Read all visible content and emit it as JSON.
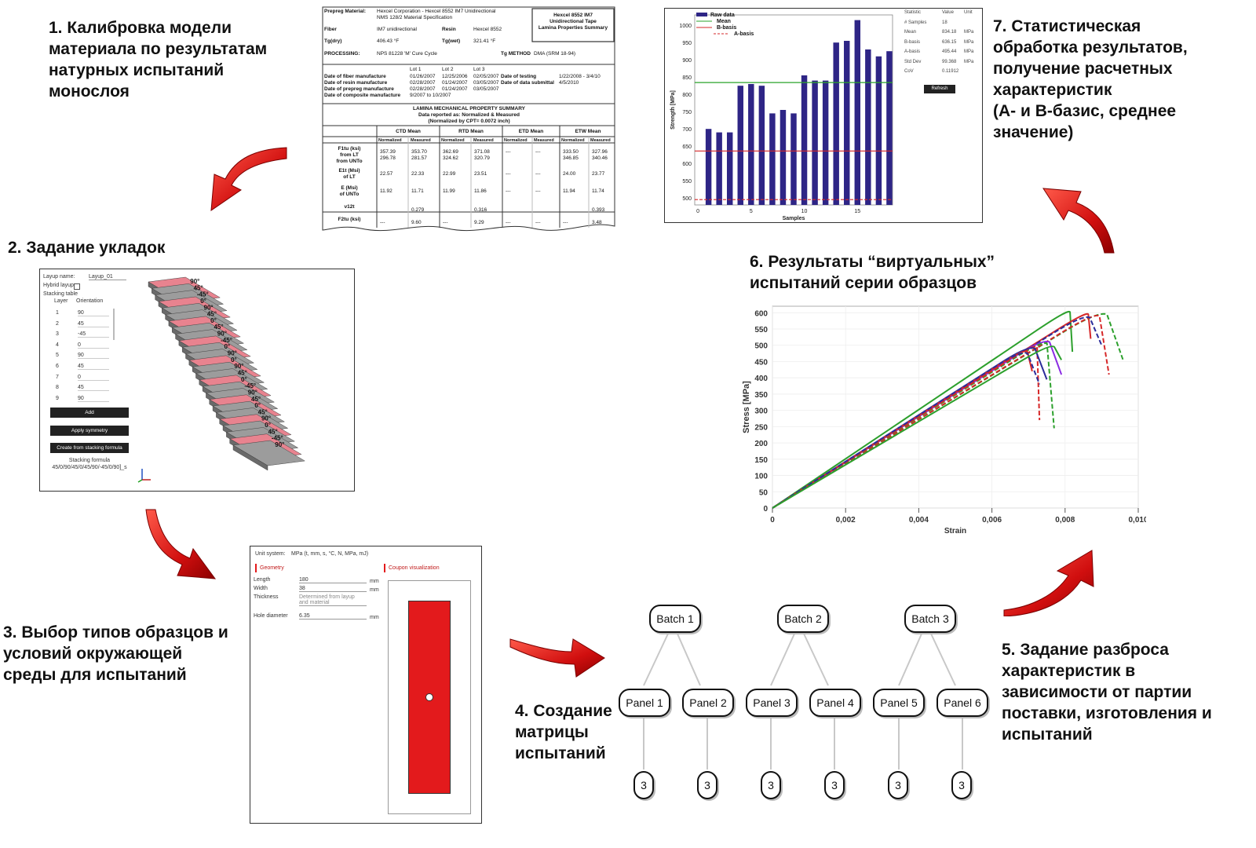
{
  "steps": {
    "s1": "1. Калибровка модели\nматериала по результатам\nнатурных испытаний\nмонослоя",
    "s2": "2. Задание укладок",
    "s3": "3. Выбор типов образцов и\nусловий окружающей\nсреды для испытаний",
    "s4": "4. Создание\nматрицы\nиспытаний",
    "s5": "5. Задание разброса\nхарактеристик в\nзависимости от партии\nпоставки, изготовления и\nиспытаний",
    "s6": "6. Результаты “виртуальных”\nиспытаний серии образцов",
    "s7": "7. Статистическая\nобработка результатов,\nполучение расчетных\nхарактеристик\n(A- и B-базис, среднее\nзначение)"
  },
  "material_doc": {
    "prepreg_label": "Prepreg Material:",
    "prepreg_value": "Hexcel Corporation - Hexcel 8552 IM7 Unidirectional",
    "spec": "NMS 128/2 Material Specification",
    "box_title": "Hexcel 8552 IM7\nUnidirectional Tape\nLamina Properties Summary",
    "fiber_label": "Fiber",
    "fiber_value": "IM7 unidirectional",
    "resin_label": "Resin",
    "resin_value": "Hexcel 8552",
    "tgdry_label": "Tg(dry)",
    "tgdry_value": "406.43 °F",
    "tgwet_label": "Tg(wet)",
    "tgwet_value": "321.41 °F",
    "processing_label": "PROCESSING:",
    "processing_value": "NPS 81228 'M' Cure Cycle",
    "tgmethod_label": "Tg METHOD",
    "tgmethod_value": "DMA (SRM 18-94)",
    "lots": [
      "Lot 1",
      "Lot 2",
      "Lot 3"
    ],
    "dates": [
      {
        "label": "Date of fiber manufacture",
        "v": [
          "01/26/2007",
          "12/25/2006",
          "02/05/2007"
        ]
      },
      {
        "label": "Date of resin manufacture",
        "v": [
          "02/28/2007",
          "01/24/2007",
          "03/05/2007"
        ]
      },
      {
        "label": "Date of prepreg manufacture",
        "v": [
          "02/28/2007",
          "01/24/2007",
          "03/05/2007"
        ]
      },
      {
        "label": "Date of composite manufacture",
        "v": [
          "9/2007 to 10/2007",
          "",
          ""
        ]
      }
    ],
    "testing_label": "Date of testing",
    "testing_value": "1/22/2008 - 3/4/10",
    "submittal_label": "Date of data submittal",
    "submittal_value": "4/5/2010",
    "summary_title": "LAMINA MECHANICAL PROPERTY SUMMARY",
    "summary_sub1": "Data reported as: Normalized & Measured",
    "summary_sub2": "(Normalized by CPT= 0.0072 inch)",
    "env_headers": [
      "CTD Mean",
      "RTD Mean",
      "ETD Mean",
      "ETW Mean"
    ],
    "sub_headers": [
      "Normalized",
      "Measured"
    ],
    "rows": [
      {
        "label": "F1tu (ksi)\nfrom LT\nfrom UNTo",
        "v": [
          "357.39\n296.78",
          "353.70\n281.57",
          "362.69\n324.62",
          "371.08\n320.79",
          "---",
          "---",
          "333.50\n346.85",
          "327.96\n340.46"
        ]
      },
      {
        "label": "E1t (Msi)\nof LT",
        "v": [
          "22.57",
          "22.33",
          "22.99",
          "23.51",
          "---",
          "---",
          "24.00",
          "23.77"
        ]
      },
      {
        "label": "E (Msi)\nof UNTo",
        "v": [
          "11.92",
          "11.71",
          "11.99",
          "11.86",
          "---",
          "---",
          "11.94",
          "11.74"
        ]
      },
      {
        "label": "ν12t",
        "v": [
          "",
          "0.279",
          "",
          "0.316",
          "",
          "",
          "",
          "0.393"
        ]
      },
      {
        "label": "F2tu (ksi)",
        "v": [
          "---",
          "9.60",
          "---",
          "9.29",
          "---",
          "---",
          "---",
          "3.48"
        ]
      }
    ]
  },
  "layup": {
    "name_label": "Layup name:",
    "name_value": "Layup_01",
    "hybrid_label": "Hybrid layup",
    "stacking_label": "Stacking table",
    "col_layer": "Layer",
    "col_orient": "Orientation",
    "layers": [
      [
        "1",
        "90"
      ],
      [
        "2",
        "45"
      ],
      [
        "3",
        "-45"
      ],
      [
        "4",
        "0"
      ],
      [
        "5",
        "90"
      ],
      [
        "6",
        "45"
      ],
      [
        "7",
        "0"
      ],
      [
        "8",
        "45"
      ],
      [
        "9",
        "90"
      ]
    ],
    "btn_add": "Add",
    "btn_symmetry": "Apply symmetry",
    "btn_formula": "Create from stacking formula",
    "formula_label": "Stacking formula",
    "formula_value": "45/0/90/45/0/45/90/-45/0/90]_s",
    "angle_labels": [
      "90°",
      "45°",
      "-45°",
      "0°",
      "90°",
      "45°",
      "0°",
      "45°",
      "90°",
      "-45°",
      "0°",
      "90°",
      "0°",
      "90°",
      "45°",
      "0°",
      "-45°",
      "90°",
      "45°",
      "0°",
      "45°",
      "90°",
      "0°",
      "45°",
      "-45°",
      "90°"
    ]
  },
  "coupon": {
    "unit_label": "Unit system:",
    "unit_value": "MPa (t, mm, s, °C, N, MPa, mJ)",
    "geometry_title": "Geometry",
    "viz_title": "Coupon visualization",
    "fields": [
      {
        "label": "Length",
        "value": "180",
        "unit": "mm"
      },
      {
        "label": "Width",
        "value": "38",
        "unit": "mm"
      },
      {
        "label": "Thickness",
        "value": "Determined from layup\nand material",
        "unit": ""
      },
      {
        "label": "Hole diameter",
        "value": "6.35",
        "unit": "mm"
      }
    ],
    "accent": "#e31a1c"
  },
  "matrix": {
    "batches": [
      "Batch 1",
      "Batch 2",
      "Batch 3"
    ],
    "panels": [
      "Panel 1",
      "Panel 2",
      "Panel 3",
      "Panel 4",
      "Panel 5",
      "Panel 6"
    ],
    "leaves": [
      "3",
      "3",
      "3",
      "3",
      "3",
      "3"
    ]
  },
  "chart_data": [
    {
      "type": "bar",
      "legend": [
        "Raw data",
        "Mean",
        "B-basis",
        "A-basis"
      ],
      "xlabel": "Samples",
      "ylabel": "Strength [MPa]",
      "x": [
        1,
        2,
        3,
        4,
        5,
        6,
        7,
        8,
        9,
        10,
        11,
        12,
        13,
        14,
        15,
        16,
        17,
        18
      ],
      "values": [
        700,
        690,
        690,
        825,
        830,
        825,
        745,
        755,
        745,
        855,
        840,
        840,
        950,
        955,
        1015,
        930,
        910,
        925
      ],
      "ylim": [
        480,
        1030
      ],
      "yticks": [
        500,
        550,
        600,
        650,
        700,
        750,
        800,
        850,
        900,
        950,
        1000
      ],
      "xticks": [
        0,
        5,
        10,
        15
      ],
      "lines": {
        "mean": 834.18,
        "b_basis": 636.15,
        "a_basis": 495.44
      },
      "colors": {
        "bars": "#2e2586",
        "mean": "#29a329",
        "b_basis": "#d62728",
        "a_basis": "#d62728"
      },
      "stats": {
        "headers": [
          "Statistic",
          "Value",
          "Unit"
        ],
        "rows": [
          [
            "# Samples",
            "18",
            ""
          ],
          [
            "Mean",
            "834.18",
            "MPa"
          ],
          [
            "B-basis",
            "636.15",
            "MPa"
          ],
          [
            "A-basis",
            "495.44",
            "MPa"
          ],
          [
            "Std Dev",
            "99.368",
            "MPa"
          ],
          [
            "CoV",
            "0.11912",
            ""
          ]
        ],
        "button": "Refresh"
      }
    },
    {
      "type": "line",
      "xlabel": "Strain",
      "ylabel": "Stress [MPa]",
      "xlim": [
        0,
        0.01
      ],
      "ylim": [
        0,
        620
      ],
      "xticks": [
        "0",
        "0,002",
        "0,004",
        "0,006",
        "0,008",
        "0,010"
      ],
      "yticks": [
        0,
        50,
        100,
        150,
        200,
        250,
        300,
        350,
        400,
        450,
        500,
        550,
        600
      ],
      "series": [
        {
          "color": "#2ca02c",
          "dash": false,
          "peak_x": 0.0081,
          "peak_y": 612,
          "end_x": 0.0082,
          "end_y": 480
        },
        {
          "color": "#d62728",
          "dash": false,
          "peak_x": 0.0086,
          "peak_y": 605,
          "end_x": 0.0087,
          "end_y": 520
        },
        {
          "color": "#2ca02c",
          "dash": true,
          "peak_x": 0.0089,
          "peak_y": 605,
          "end_x": 0.0096,
          "end_y": 450
        },
        {
          "color": "#d62728",
          "dash": true,
          "peak_x": 0.0088,
          "peak_y": 600,
          "end_x": 0.0092,
          "end_y": 410
        },
        {
          "color": "#2c2c9a",
          "dash": true,
          "peak_x": 0.0085,
          "peak_y": 595,
          "end_x": 0.009,
          "end_y": 500
        },
        {
          "color": "#8a2be2",
          "dash": false,
          "peak_x": 0.0074,
          "peak_y": 520,
          "end_x": 0.0079,
          "end_y": 410
        },
        {
          "color": "#2ca02c",
          "dash": true,
          "peak_x": 0.0074,
          "peak_y": 515,
          "end_x": 0.0077,
          "end_y": 245
        },
        {
          "color": "#d62728",
          "dash": true,
          "peak_x": 0.0072,
          "peak_y": 505,
          "end_x": 0.0073,
          "end_y": 270
        },
        {
          "color": "#2c2c9a",
          "dash": false,
          "peak_x": 0.007,
          "peak_y": 500,
          "end_x": 0.0075,
          "end_y": 395
        },
        {
          "color": "#d62728",
          "dash": false,
          "peak_x": 0.0069,
          "peak_y": 490,
          "end_x": 0.0071,
          "end_y": 420
        },
        {
          "color": "#2c2c9a",
          "dash": true,
          "peak_x": 0.0068,
          "peak_y": 485,
          "end_x": 0.0073,
          "end_y": 380
        },
        {
          "color": "#2ca02c",
          "dash": false,
          "peak_x": 0.0076,
          "peak_y": 505,
          "end_x": 0.0079,
          "end_y": 455
        }
      ]
    }
  ]
}
